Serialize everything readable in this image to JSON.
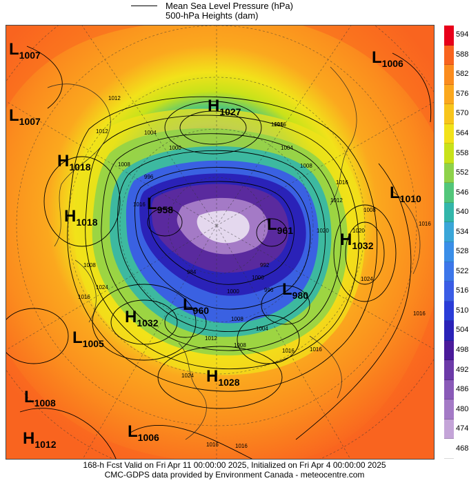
{
  "legend": {
    "items": [
      {
        "label": "Mean Sea Level Pressure (hPa)"
      },
      {
        "label": "500-hPa Heights (dam)"
      }
    ]
  },
  "colorbar": {
    "levels": [
      "594",
      "588",
      "582",
      "576",
      "570",
      "564",
      "558",
      "552",
      "546",
      "540",
      "534",
      "528",
      "522",
      "516",
      "510",
      "504",
      "498",
      "492",
      "486",
      "480",
      "474",
      "468"
    ],
    "colors": [
      "#e8001a",
      "#f9641f",
      "#fb8c1e",
      "#fba81e",
      "#f8c51c",
      "#f2e21a",
      "#c8e21a",
      "#8ed24a",
      "#52c67a",
      "#33b6aa",
      "#3aa6d8",
      "#3a8ee8",
      "#3c76ea",
      "#3a5ce6",
      "#2a3cd8",
      "#2a22b8",
      "#4a1a9a",
      "#6c3aa8",
      "#8a5ab8",
      "#a47ac6",
      "#c4a4d8",
      "#ffffff"
    ]
  },
  "map": {
    "pressure_systems": [
      {
        "type": "L",
        "value": "1007"
      },
      {
        "type": "L",
        "value": "1007"
      },
      {
        "type": "H",
        "value": "1027"
      },
      {
        "type": "L",
        "value": "1006"
      },
      {
        "type": "H",
        "value": "1018"
      },
      {
        "type": "H",
        "value": "1018"
      },
      {
        "type": "L",
        "value": "958"
      },
      {
        "type": "L",
        "value": "961"
      },
      {
        "type": "L",
        "value": "1010"
      },
      {
        "type": "H",
        "value": "1032"
      },
      {
        "type": "L",
        "value": "980"
      },
      {
        "type": "L",
        "value": "960"
      },
      {
        "type": "H",
        "value": "1032"
      },
      {
        "type": "L",
        "value": "1005"
      },
      {
        "type": "H",
        "value": "1028"
      },
      {
        "type": "L",
        "value": "1008"
      },
      {
        "type": "H",
        "value": "1012"
      },
      {
        "type": "L",
        "value": "1006"
      }
    ],
    "isobar_labels": [
      "1012",
      "1012",
      "1016",
      "1004",
      "1000",
      "1008",
      "996",
      "1016",
      "1004",
      "1008",
      "1012",
      "1020",
      "1008",
      "1016",
      "1008",
      "1016",
      "1016",
      "1016",
      "1016",
      "1024",
      "1024",
      "1004",
      "1008",
      "1012",
      "1016",
      "1016",
      "1020",
      "1016",
      "1024",
      "996",
      "992",
      "1000",
      "1000",
      "984",
      "1008",
      "1016"
    ]
  },
  "footer": {
    "line1": "168-h Fcst Valid on Fri Apr 11 00:00:00 2025, Initialized on Fri Apr  4 00:00:00 2025",
    "line2": "CMC-GDPS data provided by Environment Canada - meteocentre.com"
  }
}
